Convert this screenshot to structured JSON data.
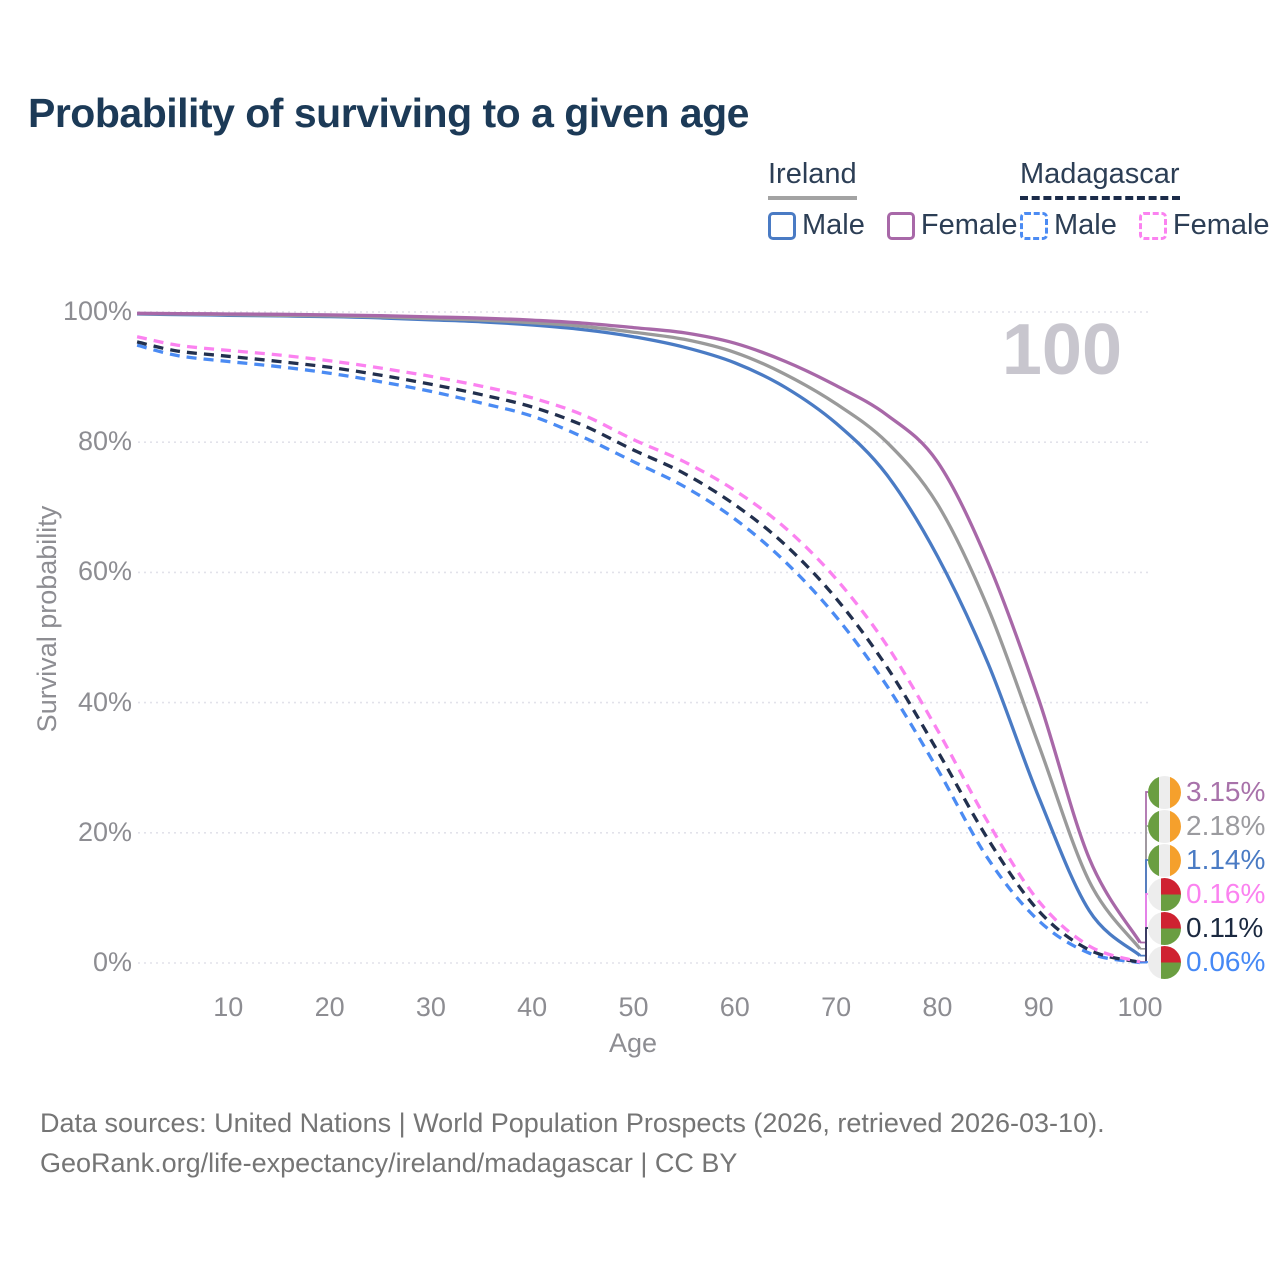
{
  "title": "Probability of surviving to a given age",
  "watermark": "100",
  "legend": {
    "groups": [
      {
        "title": "Ireland",
        "line_style": "solid",
        "items": [
          {
            "label": "Male",
            "color": "#4a7bc4"
          },
          {
            "label": "Female",
            "color": "#a868a8"
          }
        ]
      },
      {
        "title": "Madagascar",
        "line_style": "dashed",
        "items": [
          {
            "label": "Male",
            "color": "#4b8bf3"
          },
          {
            "label": "Female",
            "color": "#fb82f0"
          }
        ]
      }
    ]
  },
  "chart_data": {
    "type": "line",
    "title": "Probability of surviving to a given age",
    "xlabel": "Age",
    "ylabel": "Survival probability",
    "xlim": [
      0,
      100
    ],
    "ylim": [
      0,
      100
    ],
    "grid": "horizontal-dotted",
    "legend_position": "top-right",
    "x_tick_values": [
      10,
      20,
      30,
      40,
      50,
      60,
      70,
      80,
      90,
      100
    ],
    "x_tick_labels": [
      "10",
      "20",
      "30",
      "40",
      "50",
      "60",
      "70",
      "80",
      "90",
      "100"
    ],
    "y_tick_values": [
      0,
      20,
      40,
      60,
      80,
      100
    ],
    "y_tick_labels": [
      "0%",
      "20%",
      "40%",
      "60%",
      "80%",
      "100%"
    ],
    "ages": [
      1,
      5,
      10,
      15,
      20,
      25,
      30,
      35,
      40,
      45,
      50,
      55,
      60,
      65,
      70,
      75,
      80,
      85,
      90,
      95,
      100
    ],
    "series": [
      {
        "name": "Ireland Male",
        "country": "Ireland",
        "sex": "Male",
        "line": "solid",
        "color": "#4a7bc4",
        "end_label": "1.14%",
        "values": [
          99.7,
          99.6,
          99.5,
          99.4,
          99.3,
          99.1,
          98.8,
          98.5,
          98.0,
          97.3,
          96.2,
          94.6,
          92.2,
          88.4,
          82.9,
          75.0,
          62.5,
          46.0,
          25.5,
          8.0,
          1.14
        ]
      },
      {
        "name": "Ireland Both sexes",
        "country": "Ireland",
        "sex": "Both",
        "line": "solid",
        "color": "#9a9a9a",
        "end_label": "2.18%",
        "values": [
          99.75,
          99.7,
          99.6,
          99.5,
          99.4,
          99.25,
          99.0,
          98.75,
          98.35,
          97.8,
          96.9,
          95.8,
          93.8,
          90.4,
          85.9,
          80.0,
          70.5,
          54.5,
          33.5,
          12.5,
          2.18
        ]
      },
      {
        "name": "Ireland Female",
        "country": "Ireland",
        "sex": "Female",
        "line": "solid",
        "color": "#a868a8",
        "end_label": "3.15%",
        "values": [
          99.8,
          99.75,
          99.7,
          99.65,
          99.55,
          99.45,
          99.25,
          99.05,
          98.75,
          98.3,
          97.6,
          96.8,
          95.2,
          92.4,
          88.7,
          84.2,
          77.0,
          61.5,
          40.5,
          16.0,
          3.15
        ]
      },
      {
        "name": "Madagascar Male",
        "country": "Madagascar",
        "sex": "Male",
        "line": "dashed",
        "color": "#4b8bf3",
        "end_label": "0.06%",
        "values": [
          94.9,
          93.3,
          92.4,
          91.6,
          90.6,
          89.3,
          87.8,
          86.0,
          84.0,
          80.8,
          77.0,
          73.2,
          68.2,
          61.6,
          53.2,
          42.6,
          29.8,
          16.0,
          6.5,
          1.5,
          0.06
        ]
      },
      {
        "name": "Madagascar Both sexes",
        "country": "Madagascar",
        "sex": "Both",
        "line": "dashed",
        "color": "#22304e",
        "end_label": "0.11%",
        "values": [
          95.4,
          94.0,
          93.2,
          92.4,
          91.5,
          90.3,
          88.9,
          87.3,
          85.4,
          82.6,
          78.8,
          75.2,
          70.4,
          64.2,
          56.0,
          45.5,
          32.6,
          19.0,
          8.0,
          2.0,
          0.11
        ]
      },
      {
        "name": "Madagascar Female",
        "country": "Madagascar",
        "sex": "Female",
        "line": "dashed",
        "color": "#fb82f0",
        "end_label": "0.16%",
        "values": [
          96.2,
          94.9,
          94.1,
          93.4,
          92.5,
          91.4,
          90.1,
          88.6,
          86.8,
          84.2,
          80.4,
          77.0,
          72.6,
          66.8,
          59.0,
          48.8,
          35.8,
          21.6,
          9.5,
          2.6,
          0.16
        ]
      }
    ],
    "end_labels": [
      {
        "series": "Ireland Female",
        "text": "3.15%",
        "color": "#a872aa",
        "flag": "ireland"
      },
      {
        "series": "Ireland Both sexes",
        "text": "2.18%",
        "color": "#9b9b9f",
        "flag": "ireland"
      },
      {
        "series": "Ireland Male",
        "text": "1.14%",
        "color": "#4a7bc4",
        "flag": "ireland"
      },
      {
        "series": "Madagascar Female",
        "text": "0.16%",
        "color": "#fb82f0",
        "flag": "madagascar"
      },
      {
        "series": "Madagascar Both sexes",
        "text": "0.11%",
        "color": "#1b2940",
        "flag": "madagascar"
      },
      {
        "series": "Madagascar Male",
        "text": "0.06%",
        "color": "#4689f5",
        "flag": "madagascar"
      }
    ]
  },
  "source": {
    "line1": "Data sources: United Nations | World Population Prospects (2026, retrieved 2026-03-10).",
    "line2": "GeoRank.org/life-expectancy/ireland/madagascar | CC BY"
  }
}
